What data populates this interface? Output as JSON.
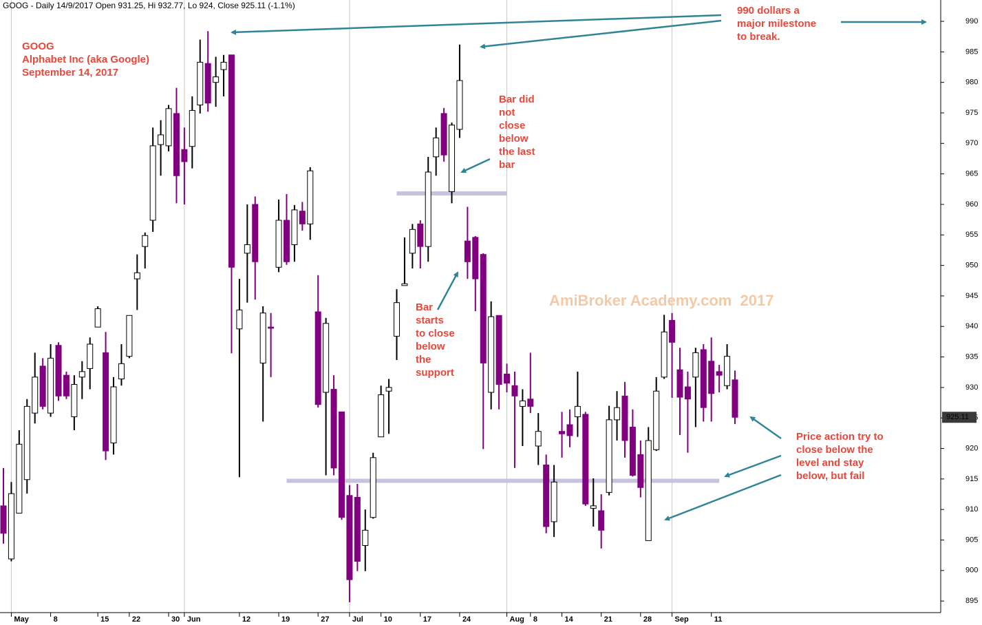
{
  "chart_data": {
    "type": "candlestick",
    "title": "GOOG - Daily 14/9/2017 Open 931.25, Hi 932.77, Lo 924, Close 925.11 (-1.1%)",
    "watermark": "AmiBroker Academy.com  2017",
    "categories": [
      null,
      "May",
      null,
      null,
      null,
      null,
      "8",
      null,
      null,
      null,
      null,
      null,
      "15",
      null,
      null,
      null,
      "22",
      null,
      null,
      null,
      null,
      "30",
      null,
      "Jun",
      null,
      null,
      null,
      null,
      null,
      null,
      "12",
      null,
      null,
      null,
      null,
      "19",
      null,
      null,
      null,
      null,
      "27",
      null,
      null,
      null,
      "Jul",
      null,
      null,
      null,
      "10",
      null,
      null,
      null,
      null,
      "17",
      null,
      null,
      null,
      null,
      "24",
      null,
      null,
      null,
      null,
      null,
      "Aug",
      null,
      null,
      "8",
      null,
      null,
      null,
      "14",
      null,
      null,
      null,
      null,
      "21",
      null,
      null,
      null,
      null,
      "28",
      null,
      null,
      null,
      "Sep",
      null,
      null,
      null,
      null,
      "11",
      null,
      null,
      null
    ],
    "open": [
      910.6,
      901.9,
      909.4,
      914.9,
      925.8,
      933.5,
      925.8,
      936.9,
      932.0,
      925.2,
      931.7,
      933.1,
      939.9,
      935.7,
      920.9,
      931.4,
      935.1,
      947.8,
      953.1,
      957.4,
      969.8,
      969.6,
      974.9,
      969.0,
      969.5,
      976.3,
      983.1,
      980.0,
      982.1,
      984.5,
      939.6,
      952.0,
      960.0,
      934.0,
      939.9,
      949.7,
      957.4,
      953.4,
      958.9,
      956.8,
      942.4,
      929.2,
      929.7,
      926.0,
      912.3,
      912.0,
      904.1,
      908.7,
      921.9,
      929.4,
      938.4,
      946.7,
      952.0,
      956.8,
      953.1,
      967.8,
      974.9,
      962.1,
      972.3,
      954.0,
      954.6,
      951.8,
      929.2,
      941.8,
      932.2,
      930.3,
      926.9,
      928.1,
      920.4,
      917.3,
      908.0,
      922.8,
      923.9,
      925.2,
      925.6,
      910.2,
      909.8,
      912.8,
      924.7,
      928.6,
      923.5,
      919.0,
      904.9,
      919.8,
      931.7,
      941.0,
      932.9,
      930.1,
      931.7,
      936.2,
      934.3,
      932.6,
      930.3,
      931.25
    ],
    "high": [
      916.8,
      914.5,
      923.0,
      928.1,
      935.7,
      934.8,
      937.1,
      937.4,
      932.6,
      932.0,
      934.3,
      938.2,
      943.3,
      939.1,
      931.7,
      937.1,
      941.8,
      951.8,
      955.4,
      972.6,
      973.8,
      976.3,
      979.1,
      972.6,
      977.7,
      987.0,
      988.4,
      984.2,
      984.5,
      984.5,
      947.8,
      960.0,
      961.3,
      943.3,
      942.2,
      960.8,
      961.7,
      959.9,
      960.4,
      966.1,
      948.4,
      941.4,
      932.0,
      926.0,
      914.0,
      914.2,
      910.0,
      919.3,
      930.3,
      931.4,
      946.1,
      954.6,
      956.8,
      957.4,
      967.8,
      972.6,
      975.8,
      973.4,
      986.2,
      959.6,
      954.8,
      952.0,
      944.1,
      941.8,
      933.9,
      932.6,
      929.7,
      935.7,
      925.8,
      919.0,
      917.3,
      926.0,
      926.4,
      932.6,
      926.0,
      915.1,
      912.5,
      927.0,
      929.4,
      930.9,
      926.4,
      921.3,
      923.5,
      931.7,
      941.9,
      942.2,
      936.5,
      932.6,
      936.5,
      937.1,
      938.2,
      933.7,
      937.1,
      932.77
    ],
    "low": [
      904.4,
      901.5,
      909.4,
      912.6,
      924.1,
      926.4,
      925.2,
      927.8,
      928.1,
      923.0,
      928.1,
      929.7,
      939.9,
      918.1,
      919.0,
      930.3,
      934.8,
      942.7,
      949.5,
      955.5,
      964.7,
      968.7,
      960.2,
      960.0,
      965.9,
      974.9,
      975.2,
      976.0,
      977.7,
      935.6,
      915.3,
      943.9,
      944.4,
      924.4,
      931.7,
      948.9,
      950.1,
      950.6,
      955.7,
      954.2,
      926.7,
      915.6,
      915.6,
      908.3,
      894.8,
      899.9,
      899.9,
      908.5,
      921.9,
      922.4,
      934.5,
      946.7,
      949.5,
      949.5,
      950.6,
      964.7,
      967.0,
      960.2,
      970.9,
      947.8,
      942.5,
      919.9,
      926.4,
      926.4,
      929.2,
      916.8,
      920.4,
      925.8,
      917.3,
      906.1,
      905.5,
      918.5,
      920.2,
      921.9,
      910.6,
      907.2,
      903.6,
      912.3,
      921.3,
      918.5,
      915.4,
      912.0,
      904.9,
      919.6,
      931.4,
      928.3,
      922.2,
      919.3,
      923.5,
      924.4,
      924.4,
      929.2,
      929.7,
      924
    ],
    "close": [
      906.1,
      912.6,
      920.7,
      926.9,
      931.7,
      926.9,
      934.8,
      928.6,
      928.6,
      930.5,
      932.6,
      937.1,
      942.9,
      919.6,
      930.1,
      933.9,
      941.8,
      948.8,
      954.9,
      969.6,
      971.4,
      975.7,
      964.7,
      967.0,
      975.4,
      983.3,
      976.6,
      980.9,
      983.3,
      949.7,
      942.7,
      953.4,
      950.6,
      942.2,
      939.7,
      957.4,
      950.6,
      959.1,
      956.8,
      965.5,
      927.2,
      940.5,
      916.8,
      908.7,
      898.5,
      901.5,
      906.6,
      918.5,
      928.8,
      930.0,
      943.9,
      947.0,
      955.9,
      953.1,
      965.3,
      970.9,
      968.1,
      973.0,
      980.3,
      950.6,
      947.8,
      934.0,
      941.6,
      930.5,
      930.7,
      928.6,
      927.8,
      926.9,
      922.8,
      907.2,
      914.5,
      922.4,
      922.1,
      926.9,
      910.9,
      910.6,
      906.6,
      924.7,
      926.7,
      921.3,
      915.6,
      913.6,
      921.3,
      929.4,
      939.1,
      937.4,
      928.4,
      928.1,
      935.7,
      926.7,
      929.0,
      932.0,
      935.1,
      925.11
    ],
    "up_color": "#ffffff",
    "down_color": "#800080",
    "ylim": [
      893.1,
      993.5
    ],
    "yticks": [
      895,
      900,
      905,
      910,
      915,
      920,
      925,
      930,
      935,
      940,
      945,
      950,
      955,
      960,
      965,
      970,
      975,
      980,
      985,
      990
    ],
    "support_lines": [
      {
        "value": 961.8,
        "from": 50,
        "to": 64
      },
      {
        "value": 914.7,
        "from": 36,
        "to": 91
      }
    ],
    "annotations": [
      {
        "lines": [
          "GOOG",
          "Alphabet Inc (aka Google)",
          "September 14, 2017"
        ]
      },
      {
        "lines": [
          "990 dollars a",
          "major milestone",
          "to break."
        ]
      },
      {
        "lines": [
          "Bar did",
          "not",
          "close",
          "below",
          "the last",
          "bar"
        ]
      },
      {
        "lines": [
          "Bar",
          "starts",
          "to close",
          "below",
          "the",
          "support"
        ]
      },
      {
        "lines": [
          "Price action try to",
          "close below the",
          "level and stay",
          "below, but fail"
        ]
      }
    ]
  }
}
